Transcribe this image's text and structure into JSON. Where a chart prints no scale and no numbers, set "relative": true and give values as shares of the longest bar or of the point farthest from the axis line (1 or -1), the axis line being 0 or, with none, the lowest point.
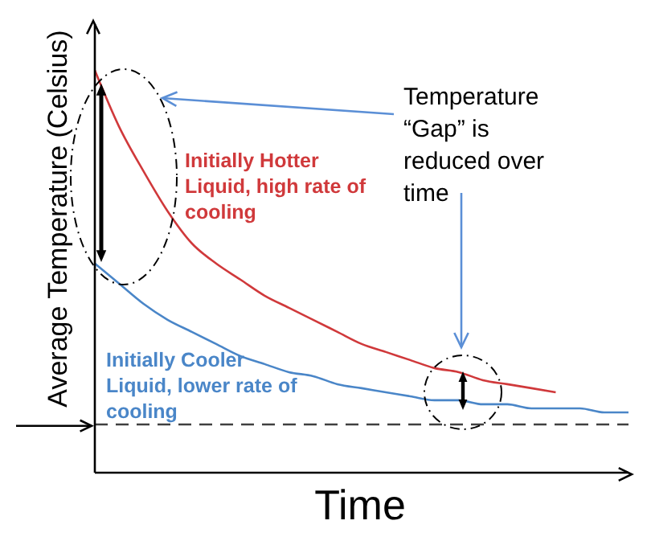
{
  "chart_data": {
    "type": "line",
    "relative": true,
    "ylabel": "Average Temperature (Celsius)",
    "xlabel": "Time",
    "categories": [
      null,
      null,
      null,
      null,
      null,
      null,
      null,
      null,
      null,
      null,
      null,
      null,
      null,
      null,
      null,
      null,
      null,
      null,
      null,
      null,
      null,
      null,
      null
    ],
    "series": [
      {
        "name": "Initially Hotter Liquid, high rate of cooling",
        "color": "#d0393b",
        "values": [
          1,
          0.86,
          0.75,
          0.65,
          0.57,
          0.52,
          0.48,
          0.44,
          0.41,
          0.38,
          0.35,
          0.32,
          0.3,
          0.28,
          0.26,
          0.25,
          0.23,
          0.22,
          0.21,
          0.2,
          null,
          null,
          null
        ]
      },
      {
        "name": "Initially Cooler Liquid, lower rate of cooling",
        "color": "#4a86c8",
        "values": [
          0.52,
          0.47,
          0.42,
          0.38,
          0.35,
          0.32,
          0.29,
          0.27,
          0.25,
          0.24,
          0.22,
          0.21,
          0.2,
          0.19,
          0.18,
          0.18,
          0.17,
          0.17,
          0.16,
          0.16,
          0.16,
          0.15,
          0.15
        ]
      }
    ],
    "ref_lines": [
      {
        "axis": "y",
        "value": 0.12,
        "color": "#404040",
        "line_style": "dashed"
      }
    ],
    "annotations": [
      "Temperature “Gap” is reduced over time"
    ],
    "legend": false,
    "grid": false,
    "marker": "none",
    "line_style": "solid"
  }
}
